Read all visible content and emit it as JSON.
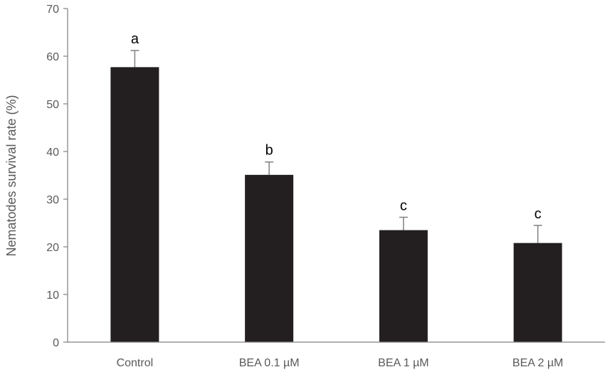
{
  "chart_data": {
    "type": "bar",
    "title": "",
    "xlabel": "",
    "ylabel": "Nematodes  survival  rate (%)",
    "ylim": [
      0,
      70
    ],
    "yticks": [
      0,
      10,
      20,
      30,
      40,
      50,
      60,
      70
    ],
    "grid": false,
    "legend": "none",
    "categories": [
      "Control",
      "BEA 0.1 µM",
      "BEA 1 µM",
      "BEA 2 µM"
    ],
    "series": [
      {
        "values": [
          57.7,
          35.1,
          23.5,
          20.8
        ],
        "errors": [
          3.5,
          2.7,
          2.7,
          3.7
        ],
        "annotations": [
          "a",
          "b",
          "c",
          "c"
        ]
      }
    ],
    "colors": {
      "bar": "#231f20",
      "axis": "#808080",
      "error_bar": "#808080",
      "text": "#595959"
    }
  }
}
